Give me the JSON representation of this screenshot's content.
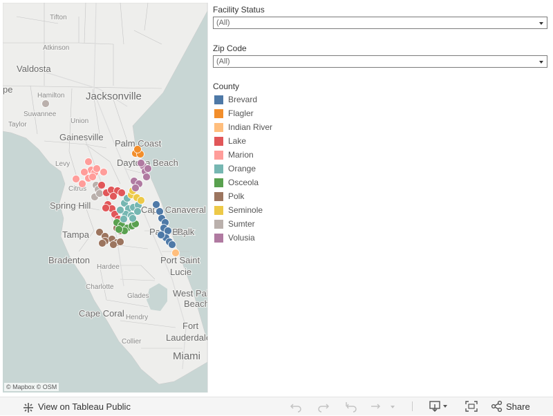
{
  "map": {
    "attribution": "© Mapbox  © OSM",
    "place_labels": [
      {
        "text": "Tifton",
        "size": 10
      },
      {
        "text": "Atkinson",
        "size": 10
      },
      {
        "text": "Valdosta",
        "size": 13
      },
      {
        "text": "Hamilton",
        "size": 10
      },
      {
        "text": "Jacksonville",
        "size": 15
      },
      {
        "text": "Suwannee",
        "size": 10
      },
      {
        "text": "Union",
        "size": 10
      },
      {
        "text": "Taylor",
        "size": 10
      },
      {
        "text": "Gainesville",
        "size": 13
      },
      {
        "text": "Palm Coast",
        "size": 13
      },
      {
        "text": "Daytona Beach",
        "size": 13
      },
      {
        "text": "Levy",
        "size": 10
      },
      {
        "text": "Citrus",
        "size": 10
      },
      {
        "text": "Spring Hill",
        "size": 13
      },
      {
        "text": "Cape Canaveral",
        "size": 13
      },
      {
        "text": "Palm Bay",
        "size": 13
      },
      {
        "text": "Tampa",
        "size": 13
      },
      {
        "text": "Bradenton",
        "size": 13
      },
      {
        "text": "Hardee",
        "size": 10
      },
      {
        "text": "Port Saint",
        "size": 13
      },
      {
        "text": "Lucie",
        "size": 13
      },
      {
        "text": "Charlotte",
        "size": 10
      },
      {
        "text": "Glades",
        "size": 10
      },
      {
        "text": "West Palm",
        "size": 13
      },
      {
        "text": "Beach",
        "size": 13
      },
      {
        "text": "Cape Coral",
        "size": 13
      },
      {
        "text": "Hendry",
        "size": 10
      },
      {
        "text": "Fort",
        "size": 13
      },
      {
        "text": "Lauderdale",
        "size": 13
      },
      {
        "text": "Collier",
        "size": 10
      },
      {
        "text": "Miami",
        "size": 15
      },
      {
        "text": "Palk",
        "size": 13
      },
      {
        "text": "pe",
        "size": 13
      }
    ],
    "clusters": [
      {
        "county": "Sumter",
        "points": [
          [
            62,
            146
          ],
          [
            135,
            264
          ],
          [
            138,
            270
          ],
          [
            133,
            281
          ],
          [
            140,
            276
          ]
        ]
      },
      {
        "county": "Marion",
        "points": [
          [
            124,
            230
          ],
          [
            128,
            242
          ],
          [
            133,
            246
          ],
          [
            118,
            245
          ],
          [
            124,
            254
          ],
          [
            130,
            252
          ],
          [
            106,
            255
          ],
          [
            115,
            262
          ],
          [
            146,
            245
          ],
          [
            136,
            240
          ]
        ]
      },
      {
        "county": "Lake",
        "points": [
          [
            143,
            264
          ],
          [
            150,
            275
          ],
          [
            157,
            271
          ],
          [
            166,
            272
          ],
          [
            172,
            275
          ],
          [
            160,
            280
          ],
          [
            152,
            292
          ],
          [
            158,
            298
          ],
          [
            149,
            297
          ],
          [
            162,
            306
          ],
          [
            167,
            313
          ]
        ]
      },
      {
        "county": "Polk",
        "points": [
          [
            140,
            332
          ],
          [
            148,
            338
          ],
          [
            158,
            342
          ],
          [
            165,
            347
          ],
          [
            170,
            346
          ],
          [
            148,
            345
          ],
          [
            160,
            350
          ],
          [
            144,
            348
          ],
          [
            165,
            326
          ],
          [
            170,
            330
          ]
        ]
      },
      {
        "county": "Osceola",
        "points": [
          [
            165,
            318
          ],
          [
            172,
            322
          ],
          [
            180,
            326
          ],
          [
            187,
            323
          ],
          [
            192,
            320
          ],
          [
            176,
            330
          ],
          [
            168,
            328
          ]
        ]
      },
      {
        "county": "Orange",
        "points": [
          [
            176,
            290
          ],
          [
            182,
            298
          ],
          [
            189,
            296
          ],
          [
            196,
            293
          ],
          [
            178,
            306
          ],
          [
            186,
            308
          ],
          [
            170,
            300
          ],
          [
            188,
            312
          ],
          [
            175,
            313
          ],
          [
            195,
            302
          ],
          [
            180,
            283
          ]
        ]
      },
      {
        "county": "Seminole",
        "points": [
          [
            186,
            278
          ],
          [
            194,
            282
          ],
          [
            200,
            286
          ],
          [
            188,
            272
          ],
          [
            192,
            268
          ]
        ]
      },
      {
        "county": "Volusia",
        "points": [
          [
            190,
            258
          ],
          [
            197,
            262
          ],
          [
            192,
            268
          ],
          [
            203,
            236
          ],
          [
            206,
            244
          ],
          [
            210,
            240
          ],
          [
            200,
            232
          ],
          [
            208,
            252
          ]
        ]
      },
      {
        "county": "Flagler",
        "points": [
          [
            192,
            218
          ],
          [
            199,
            219
          ],
          [
            195,
            212
          ]
        ]
      },
      {
        "county": "Brevard",
        "points": [
          [
            222,
            292
          ],
          [
            227,
            302
          ],
          [
            230,
            312
          ],
          [
            235,
            318
          ],
          [
            233,
            326
          ],
          [
            239,
            330
          ],
          [
            236,
            340
          ],
          [
            241,
            346
          ],
          [
            245,
            350
          ],
          [
            229,
            336
          ]
        ]
      },
      {
        "county": "Indian River",
        "points": [
          [
            250,
            362
          ]
        ]
      }
    ]
  },
  "filters": {
    "facility_status": {
      "title": "Facility Status",
      "value": "(All)"
    },
    "zip_code": {
      "title": "Zip Code",
      "value": "(All)"
    }
  },
  "legend": {
    "title": "County",
    "items": [
      {
        "label": "Brevard",
        "color": "#4e79a7"
      },
      {
        "label": "Flagler",
        "color": "#f28e2b"
      },
      {
        "label": "Indian River",
        "color": "#ffbe7d"
      },
      {
        "label": "Lake",
        "color": "#e15759"
      },
      {
        "label": "Marion",
        "color": "#ff9d9a"
      },
      {
        "label": "Orange",
        "color": "#76b7b2"
      },
      {
        "label": "Osceola",
        "color": "#59a14f"
      },
      {
        "label": "Polk",
        "color": "#9c755f"
      },
      {
        "label": "Seminole",
        "color": "#edc948"
      },
      {
        "label": "Sumter",
        "color": "#bab0ac"
      },
      {
        "label": "Volusia",
        "color": "#b07aa1"
      }
    ]
  },
  "toolbar": {
    "view_label": "View on Tableau Public",
    "share_label": "Share",
    "icons": [
      "undo-icon",
      "redo-icon",
      "revert-icon",
      "refresh-icon",
      "refresh-menu-icon",
      "download-icon",
      "fullscreen-icon",
      "share-icon"
    ]
  }
}
